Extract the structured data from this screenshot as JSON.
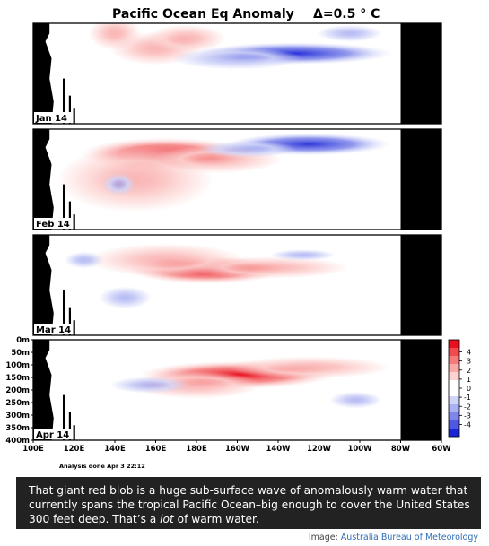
{
  "chart_data": {
    "type": "heatmap",
    "title": "Pacific Ocean Eq Anomaly",
    "interval_label": "Δ=0.5 ° C",
    "panels": [
      {
        "label": "Jan 14",
        "hotspots": [
          {
            "lon": 140,
            "depth": 40,
            "dlon": 8,
            "ddepth": 60,
            "value": 1.2
          },
          {
            "lon": 160,
            "depth": 100,
            "dlon": 14,
            "ddepth": 60,
            "value": 1.5
          },
          {
            "lon": 175,
            "depth": 60,
            "dlon": 12,
            "ddepth": 50,
            "value": 0.8
          },
          {
            "lon": 228,
            "depth": 120,
            "dlon": 30,
            "ddepth": 40,
            "value": -4
          },
          {
            "lon": 200,
            "depth": 140,
            "dlon": 20,
            "ddepth": 40,
            "value": -1.5
          },
          {
            "lon": 255,
            "depth": 40,
            "dlon": 10,
            "ddepth": 30,
            "value": -1.5
          }
        ]
      },
      {
        "label": "Feb 14",
        "hotspots": [
          {
            "lon": 165,
            "depth": 100,
            "dlon": 26,
            "ddepth": 60,
            "value": 2.5
          },
          {
            "lon": 190,
            "depth": 120,
            "dlon": 20,
            "ddepth": 50,
            "value": 2
          },
          {
            "lon": 150,
            "depth": 200,
            "dlon": 24,
            "ddepth": 120,
            "value": 1
          },
          {
            "lon": 235,
            "depth": 60,
            "dlon": 25,
            "ddepth": 40,
            "value": -3.8
          },
          {
            "lon": 205,
            "depth": 80,
            "dlon": 15,
            "ddepth": 30,
            "value": -1.2
          },
          {
            "lon": 142,
            "depth": 220,
            "dlon": 5,
            "ddepth": 40,
            "value": -1
          }
        ]
      },
      {
        "label": "Mar 14",
        "hotspots": [
          {
            "lon": 185,
            "depth": 140,
            "dlon": 24,
            "ddepth": 50,
            "value": 3.8
          },
          {
            "lon": 165,
            "depth": 100,
            "dlon": 24,
            "ddepth": 60,
            "value": 1.5
          },
          {
            "lon": 215,
            "depth": 130,
            "dlon": 25,
            "ddepth": 40,
            "value": 1.2
          },
          {
            "lon": 145,
            "depth": 250,
            "dlon": 8,
            "ddepth": 40,
            "value": -1.2
          },
          {
            "lon": 232,
            "depth": 80,
            "dlon": 10,
            "ddepth": 20,
            "value": -1.2
          },
          {
            "lon": 125,
            "depth": 100,
            "dlon": 6,
            "ddepth": 30,
            "value": -0.8
          }
        ]
      },
      {
        "label": "Apr 14",
        "hotspots": [
          {
            "lon": 200,
            "depth": 140,
            "dlon": 30,
            "ddepth": 50,
            "value": 4.2
          },
          {
            "lon": 180,
            "depth": 180,
            "dlon": 20,
            "ddepth": 50,
            "value": 2
          },
          {
            "lon": 235,
            "depth": 110,
            "dlon": 25,
            "ddepth": 40,
            "value": 1.3
          },
          {
            "lon": 157,
            "depth": 180,
            "dlon": 12,
            "ddepth": 30,
            "value": -1.5
          },
          {
            "lon": 258,
            "depth": 240,
            "dlon": 8,
            "ddepth": 30,
            "value": -1
          }
        ]
      }
    ],
    "x_ticks": [
      "100E",
      "120E",
      "140E",
      "160E",
      "180E",
      "160W",
      "140W",
      "120W",
      "100W",
      "80W",
      "60W"
    ],
    "x_range_deg_east": [
      100,
      300
    ],
    "y_ticks": [
      "0m",
      "50m",
      "100m",
      "150m",
      "200m",
      "250m",
      "300m",
      "350m",
      "400m"
    ],
    "y_range_m": [
      0,
      400
    ],
    "colorbar": {
      "ticks": [
        "4",
        "3",
        "2",
        "1",
        "0",
        "-1",
        "-2",
        "-3",
        "-4"
      ],
      "colors": [
        "#e8101e",
        "#f04a4e",
        "#f57a7a",
        "#f9a9a6",
        "#fcd2d0",
        "#ffffff",
        "#ffffff",
        "#d0d4f8",
        "#aab1f2",
        "#7e86ea",
        "#4f58e0",
        "#1a24d6"
      ]
    },
    "footnote": "Analysis done Apr 3 22:12"
  },
  "caption": {
    "part1": "That giant red blob is a huge sub-surface wave of anomalously warm water that currently spans the tropical Pacific Ocean–big enough to cover the United States 300 feet deep. That’s a ",
    "italic": "lot",
    "part2": " of warm water."
  },
  "credit": {
    "prefix": "Image: ",
    "source": "Australia Bureau of Meteorology"
  }
}
